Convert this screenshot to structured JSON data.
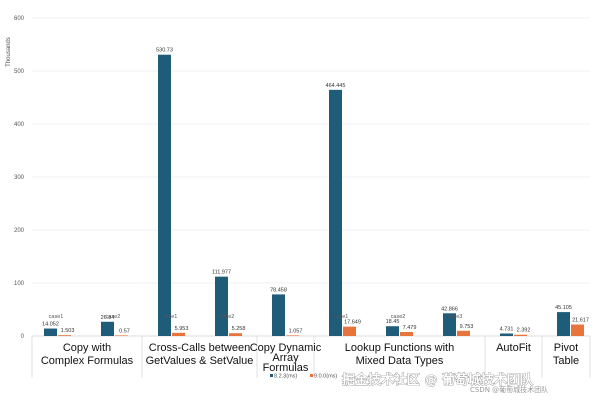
{
  "chart_data": {
    "type": "bar",
    "ylabel": "Thousands",
    "ylim": [
      0,
      600
    ],
    "yticks": [
      0,
      100,
      200,
      300,
      400,
      500,
      600
    ],
    "grid": true,
    "legend_position": "bottom",
    "groups": [
      {
        "name": "Copy with Complex Formulas",
        "lines": [
          "Copy with",
          "Complex Formulas"
        ],
        "cases": [
          "case1",
          "case2"
        ]
      },
      {
        "name": "Cross-Calls between GetValues & SetValue",
        "lines": [
          "Cross-Calls between",
          "GetValues & SetValue"
        ],
        "cases": [
          "case1",
          "case2"
        ]
      },
      {
        "name": "Copy Dynamic Array Formulas",
        "lines": [
          "Copy Dynamic",
          "Array",
          "Formulas"
        ],
        "cases": [
          ""
        ]
      },
      {
        "name": "Lookup Functions with Mixed Data Types",
        "lines": [
          "Lookup Functions with",
          "Mixed Data Types"
        ],
        "cases": [
          "case1",
          "case2",
          "case3"
        ]
      },
      {
        "name": "AutoFit",
        "lines": [
          "AutoFit"
        ],
        "cases": [
          ""
        ]
      },
      {
        "name": "Pivot Table",
        "lines": [
          "Pivot",
          "Table"
        ],
        "cases": [
          ""
        ]
      }
    ],
    "series": [
      {
        "name": "8.2.3(ms)",
        "color": "#1f5c7a",
        "values": [
          14.052,
          26.84,
          530.73,
          111.977,
          78.458,
          464.445,
          18.45,
          42.866,
          4.731,
          45.105
        ],
        "labels": [
          "14.052",
          "26.84",
          "530.73",
          "111.977",
          "78.458",
          "464.445",
          "18.45",
          "42.866",
          "4.731",
          "45.105"
        ]
      },
      {
        "name": "9.0.0(ms)",
        "color": "#e8743b",
        "values": [
          1.503,
          0.57,
          5.953,
          5.258,
          1.057,
          17.649,
          7.479,
          9.753,
          2.392,
          21.617
        ],
        "labels": [
          "1.503",
          "0.57",
          "5.953",
          "5.258",
          "1.057",
          "17.649",
          "7.479",
          "9.753",
          "2.392",
          "21.617"
        ]
      }
    ]
  },
  "watermark": {
    "main": "掘金技术社区 @ 葡萄城技术团队",
    "sub": "CSDN @葡萄城技术团队"
  }
}
